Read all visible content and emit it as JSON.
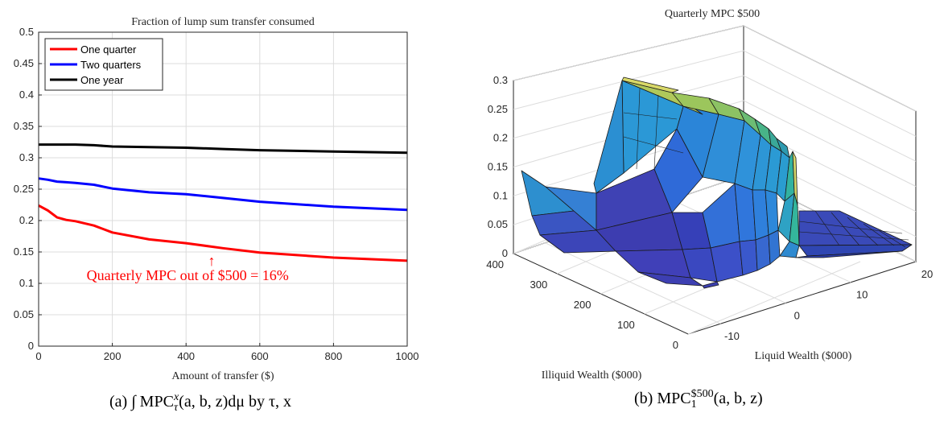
{
  "chart_data": [
    {
      "type": "line",
      "title": "Fraction of lump sum transfer consumed",
      "xlabel": "Amount of transfer ($)",
      "ylabel": "",
      "xlim": [
        0,
        1000
      ],
      "ylim": [
        0,
        0.5
      ],
      "xticks": [
        "0",
        "200",
        "400",
        "600",
        "800",
        "1000"
      ],
      "yticks": [
        "0",
        "0.05",
        "0.1",
        "0.15",
        "0.2",
        "0.25",
        "0.3",
        "0.35",
        "0.4",
        "0.45",
        "0.5"
      ],
      "grid": true,
      "legend_position": "top-left",
      "series": [
        {
          "name": "One quarter",
          "color": "#ff0000",
          "x": [
            0,
            25,
            50,
            75,
            100,
            150,
            200,
            300,
            400,
            500,
            600,
            800,
            1000
          ],
          "y": [
            0.224,
            0.216,
            0.205,
            0.201,
            0.199,
            0.192,
            0.181,
            0.17,
            0.164,
            0.156,
            0.149,
            0.141,
            0.136
          ]
        },
        {
          "name": "Two quarters",
          "color": "#0000ff",
          "x": [
            0,
            25,
            50,
            75,
            100,
            150,
            200,
            300,
            400,
            500,
            600,
            800,
            1000
          ],
          "y": [
            0.267,
            0.265,
            0.262,
            0.261,
            0.26,
            0.257,
            0.251,
            0.245,
            0.242,
            0.236,
            0.23,
            0.222,
            0.217
          ]
        },
        {
          "name": "One year",
          "color": "#000000",
          "x": [
            0,
            50,
            100,
            150,
            200,
            300,
            400,
            500,
            600,
            800,
            1000
          ],
          "y": [
            0.321,
            0.321,
            0.321,
            0.32,
            0.318,
            0.317,
            0.316,
            0.314,
            0.312,
            0.31,
            0.308
          ]
        }
      ],
      "annotation": {
        "arrow": "↑",
        "text": "Quarterly MPC out of $500 = 16%",
        "color": "#ff0000",
        "x": 500,
        "y": 0.105
      }
    },
    {
      "type": "surface",
      "title": "Quarterly MPC $500",
      "xlabel": "Liquid Wealth ($000)",
      "ylabel": "Illiquid Wealth ($000)",
      "zlabel": "",
      "xticks": [
        "-10",
        "0",
        "10",
        "20"
      ],
      "yticks": [
        "0",
        "100",
        "200",
        "300",
        "400"
      ],
      "zticks": [
        "0",
        "0.05",
        "0.1",
        "0.15",
        "0.2",
        "0.25",
        "0.3"
      ],
      "zlim": [
        0,
        0.3
      ]
    }
  ],
  "captions": {
    "a_prefix": "(a)",
    "a_text": "∫ MPC",
    "a_sup": "x",
    "a_sub": "τ",
    "a_rest": "(a, b, z)dμ by τ, x",
    "b_prefix": "(b)",
    "b_text": "MPC",
    "b_sup": "$500",
    "b_sub": "1",
    "b_rest": "(a, b, z)"
  }
}
